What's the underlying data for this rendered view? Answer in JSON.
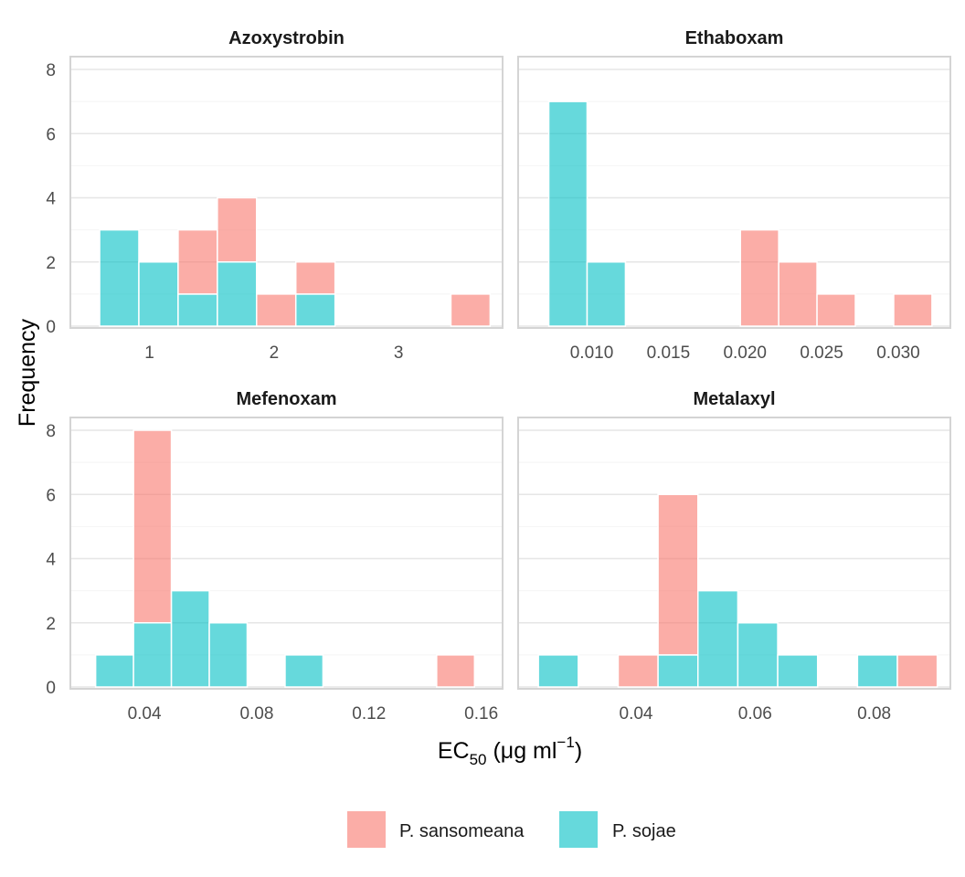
{
  "chart_data": {
    "type": "bar",
    "subtype": "stacked-histogram-facets",
    "ylabel": "Frequency",
    "xlabel": {
      "main": "EC",
      "sub": "50",
      "units_pre": " (μg ml",
      "sup": "−1",
      "units_post": ")"
    },
    "ylim": [
      0,
      8
    ],
    "yticks": [
      0,
      2,
      4,
      6,
      8
    ],
    "grid": true,
    "legend_position": "bottom",
    "series_colors": {
      "P. sansomeana": "#F8766D",
      "P. sojae": "#00BFC4"
    },
    "legend": [
      {
        "name": "P. sansomeana",
        "color": "#F8766D"
      },
      {
        "name": "P. sojae",
        "color": "#00BFC4"
      }
    ],
    "facets": [
      {
        "title": "Azoxystrobin",
        "xlim": [
          0.365,
          3.835
        ],
        "xticks": [
          1,
          2,
          3
        ],
        "tick_labels": [
          "1",
          "2",
          "3"
        ],
        "bins": [
          {
            "x0": 0.6,
            "x1": 0.915,
            "sojae": 3,
            "sansomeana": 0
          },
          {
            "x0": 0.915,
            "x1": 1.23,
            "sojae": 2,
            "sansomeana": 0
          },
          {
            "x0": 1.23,
            "x1": 1.545,
            "sojae": 1,
            "sansomeana": 2
          },
          {
            "x0": 1.545,
            "x1": 1.86,
            "sojae": 2,
            "sansomeana": 2
          },
          {
            "x0": 1.86,
            "x1": 2.175,
            "sojae": 0,
            "sansomeana": 1
          },
          {
            "x0": 2.175,
            "x1": 2.49,
            "sojae": 1,
            "sansomeana": 1
          },
          {
            "x0": 3.42,
            "x1": 3.735,
            "sojae": 0,
            "sansomeana": 1
          }
        ]
      },
      {
        "title": "Ethaboxam",
        "xlim": [
          0.0052,
          0.0334
        ],
        "xticks": [
          0.01,
          0.015,
          0.02,
          0.025,
          0.03
        ],
        "tick_labels": [
          "0.010",
          "0.015",
          "0.020",
          "0.025",
          "0.030"
        ],
        "bins": [
          {
            "x0": 0.0072,
            "x1": 0.0097,
            "sojae": 7,
            "sansomeana": 0
          },
          {
            "x0": 0.0097,
            "x1": 0.0122,
            "sojae": 2,
            "sansomeana": 0
          },
          {
            "x0": 0.0197,
            "x1": 0.0222,
            "sojae": 0,
            "sansomeana": 3
          },
          {
            "x0": 0.0222,
            "x1": 0.0247,
            "sojae": 0,
            "sansomeana": 2
          },
          {
            "x0": 0.0247,
            "x1": 0.0272,
            "sojae": 0,
            "sansomeana": 1
          },
          {
            "x0": 0.0297,
            "x1": 0.0322,
            "sojae": 0,
            "sansomeana": 1
          }
        ]
      },
      {
        "title": "Mefenoxam",
        "xlim": [
          0.0136,
          0.1676
        ],
        "xticks": [
          0.04,
          0.08,
          0.12,
          0.16
        ],
        "tick_labels": [
          "0.04",
          "0.08",
          "0.12",
          "0.16"
        ],
        "bins": [
          {
            "x0": 0.0226,
            "x1": 0.0361,
            "sojae": 1,
            "sansomeana": 0
          },
          {
            "x0": 0.0361,
            "x1": 0.0496,
            "sojae": 2,
            "sansomeana": 6
          },
          {
            "x0": 0.0496,
            "x1": 0.0631,
            "sojae": 3,
            "sansomeana": 0
          },
          {
            "x0": 0.0631,
            "x1": 0.0766,
            "sojae": 2,
            "sansomeana": 0
          },
          {
            "x0": 0.0901,
            "x1": 0.1036,
            "sojae": 1,
            "sansomeana": 0
          },
          {
            "x0": 0.1441,
            "x1": 0.1576,
            "sojae": 1,
            "sansomeana": 0
          }
        ],
        "bin_colors_override": [
          {
            "index": 5,
            "sojae_as": "P. sansomeana"
          }
        ]
      },
      {
        "title": "Metalaxyl",
        "xlim": [
          0.0202,
          0.0928
        ],
        "xticks": [
          0.04,
          0.06,
          0.08
        ],
        "tick_labels": [
          "0.04",
          "0.06",
          "0.08"
        ],
        "bins": [
          {
            "x0": 0.0236,
            "x1": 0.0303,
            "sojae": 1,
            "sansomeana": 0
          },
          {
            "x0": 0.037,
            "x1": 0.0437,
            "sojae": 0,
            "sansomeana": 1
          },
          {
            "x0": 0.0437,
            "x1": 0.0504,
            "sojae": 1,
            "sansomeana": 5
          },
          {
            "x0": 0.0504,
            "x1": 0.0571,
            "sojae": 3,
            "sansomeana": 0
          },
          {
            "x0": 0.0571,
            "x1": 0.0638,
            "sojae": 2,
            "sansomeana": 0
          },
          {
            "x0": 0.0638,
            "x1": 0.0705,
            "sojae": 1,
            "sansomeana": 0
          },
          {
            "x0": 0.0772,
            "x1": 0.0839,
            "sojae": 1,
            "sansomeana": 0
          },
          {
            "x0": 0.0839,
            "x1": 0.0906,
            "sojae": 0,
            "sansomeana": 1
          }
        ]
      }
    ]
  }
}
